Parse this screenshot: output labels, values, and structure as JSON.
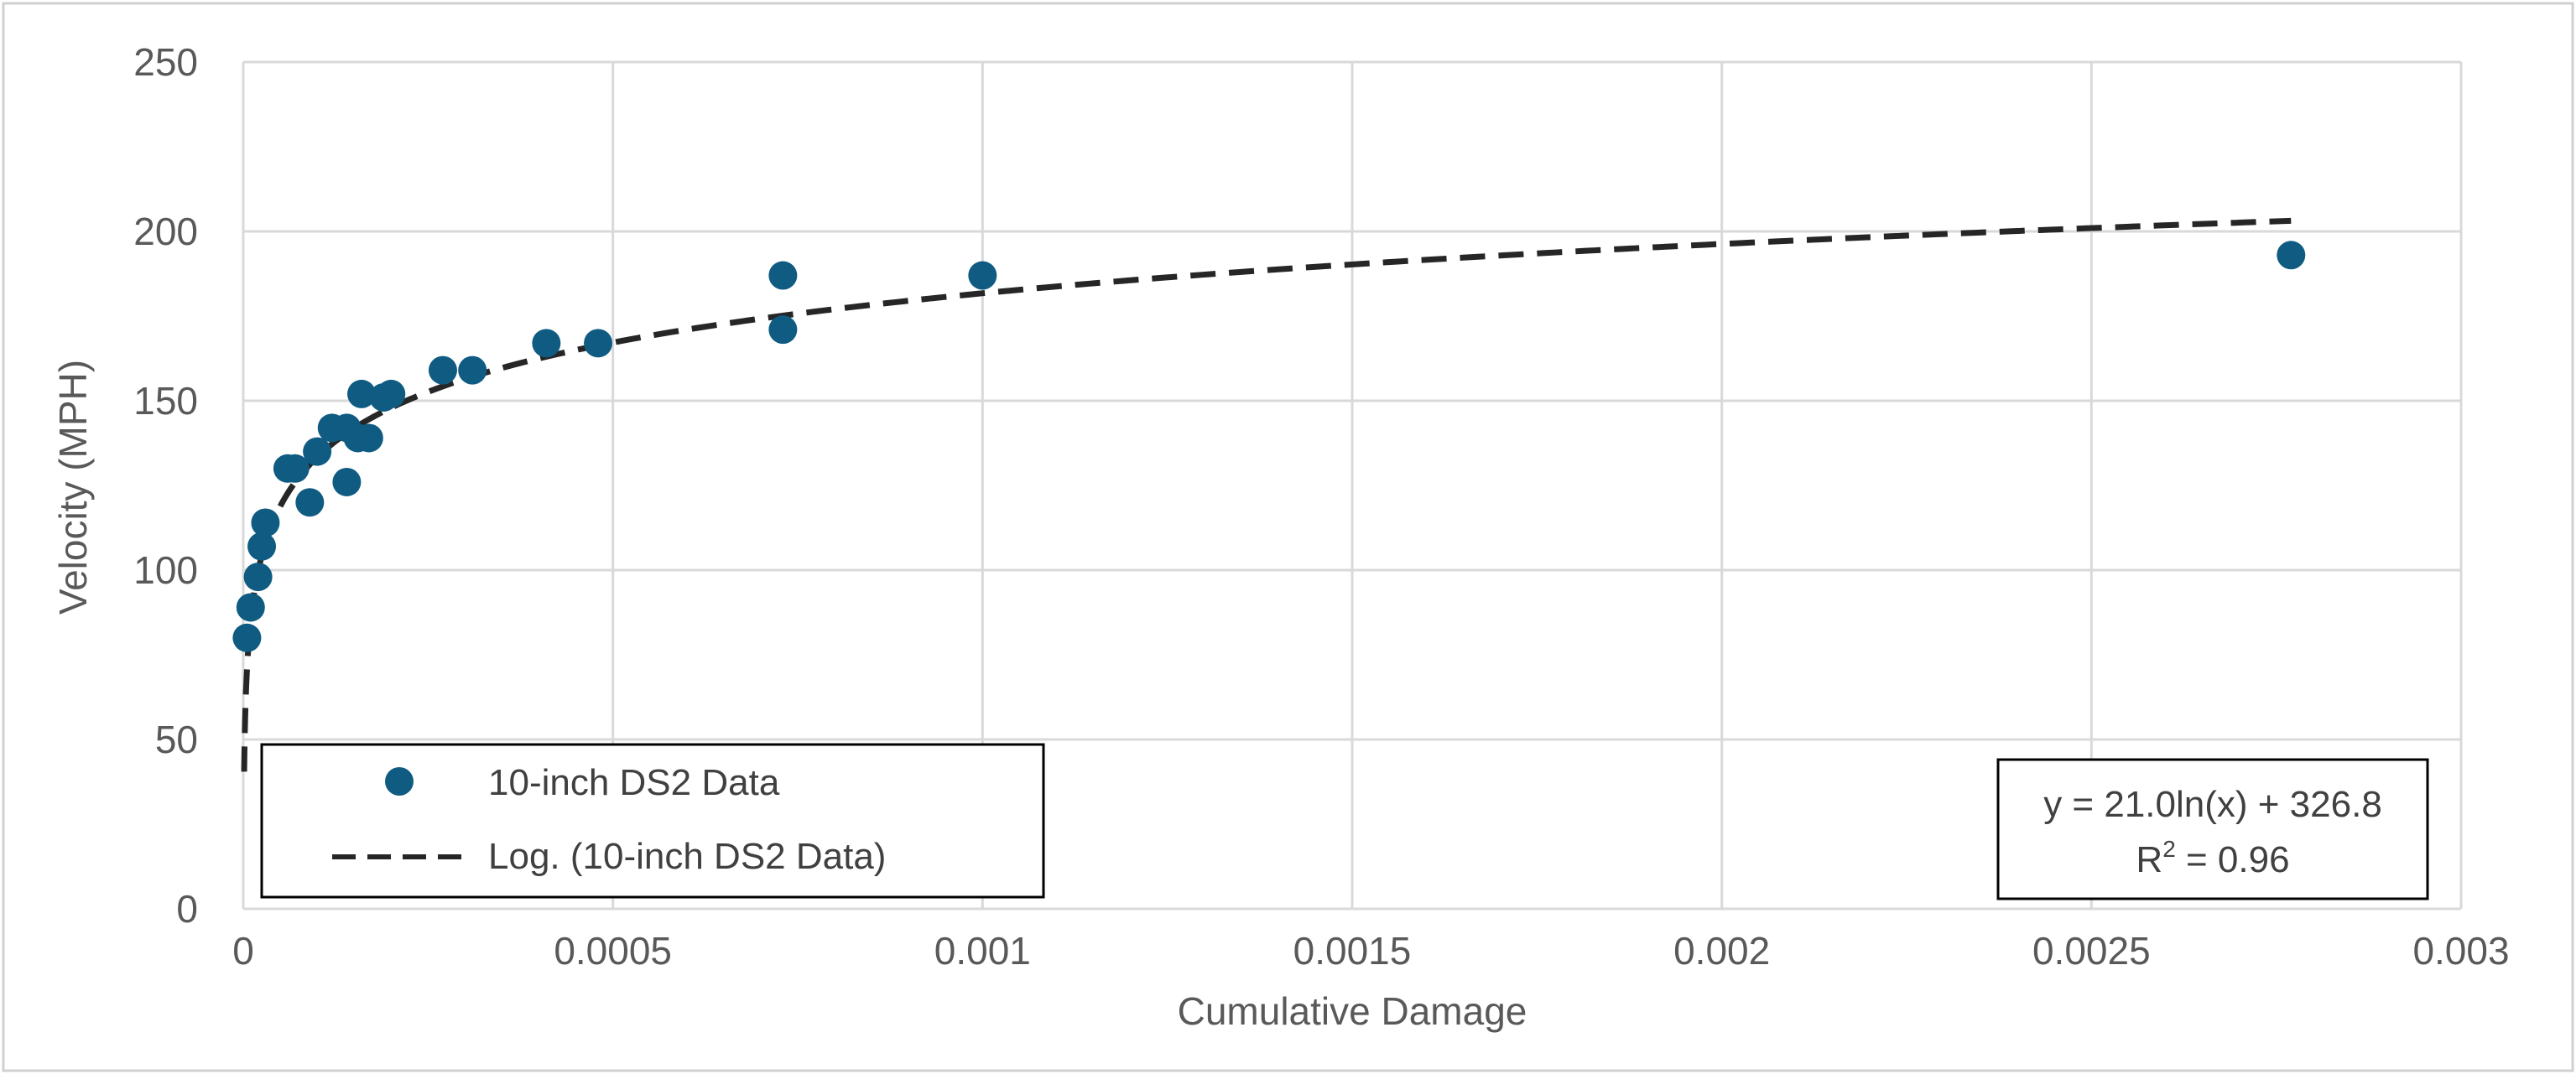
{
  "chart_data": {
    "type": "scatter",
    "title": "",
    "xlabel": "Cumulative Damage",
    "ylabel": "Velocity (MPH)",
    "xlim": [
      0,
      0.003
    ],
    "ylim": [
      0,
      250
    ],
    "x_ticks": [
      0,
      0.0005,
      0.001,
      0.0015,
      0.002,
      0.0025,
      0.003
    ],
    "x_tick_labels": [
      "0",
      "0.0005",
      "0.001",
      "0.0015",
      "0.002",
      "0.0025",
      "0.003"
    ],
    "y_ticks": [
      0,
      50,
      100,
      150,
      200,
      250
    ],
    "y_tick_labels": [
      "0",
      "50",
      "100",
      "150",
      "200",
      "250"
    ],
    "grid": true,
    "legend_position": "bottom-left",
    "series": [
      {
        "name": "10-inch DS2 Data",
        "kind": "markers",
        "color": "#0f5b82",
        "points": [
          [
            5e-06,
            80
          ],
          [
            1e-05,
            89
          ],
          [
            2e-05,
            98
          ],
          [
            2.5e-05,
            107
          ],
          [
            3e-05,
            114
          ],
          [
            6e-05,
            130
          ],
          [
            7e-05,
            130
          ],
          [
            9e-05,
            120
          ],
          [
            0.0001,
            135
          ],
          [
            0.00012,
            142
          ],
          [
            0.00014,
            142
          ],
          [
            0.00014,
            126
          ],
          [
            0.00016,
            152
          ],
          [
            0.000155,
            139
          ],
          [
            0.00017,
            139
          ],
          [
            0.00019,
            151
          ],
          [
            0.0002,
            152
          ],
          [
            0.00027,
            159
          ],
          [
            0.00031,
            159
          ],
          [
            0.00041,
            167
          ],
          [
            0.00048,
            167
          ],
          [
            0.00073,
            187
          ],
          [
            0.00073,
            171
          ],
          [
            0.001,
            187
          ],
          [
            0.00277,
            193
          ]
        ]
      },
      {
        "name": "Log. (10-inch DS2 Data)",
        "kind": "trendline",
        "color": "#262626",
        "model": "logarithmic",
        "a": 21.0,
        "b": 326.8,
        "x_range": [
          1.2e-06,
          0.00277
        ]
      }
    ],
    "annotation": {
      "equation": "y = 21.0ln(x) + 326.8",
      "r2_prefix": "R",
      "r2_sup": "2",
      "r2_suffix": " = 0.96"
    }
  }
}
